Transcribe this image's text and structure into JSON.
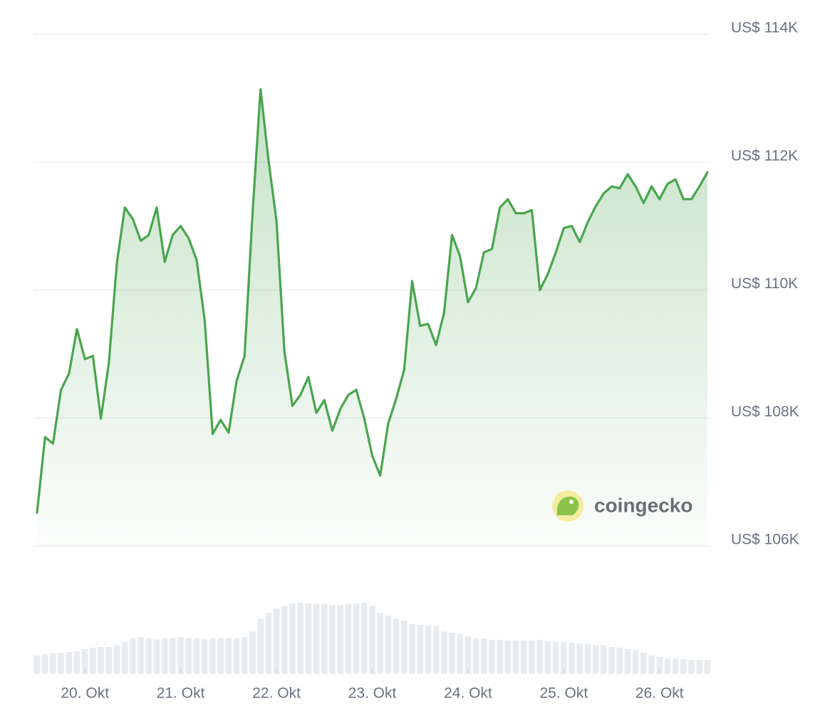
{
  "chart_data": {
    "type": "line",
    "watermark": "coingecko",
    "categories": [
      null,
      null,
      null,
      null,
      null,
      null,
      "20. Okt",
      null,
      null,
      null,
      null,
      null,
      null,
      null,
      null,
      null,
      null,
      null,
      "21. Okt",
      null,
      null,
      null,
      null,
      null,
      null,
      null,
      null,
      null,
      null,
      null,
      "22. Okt",
      null,
      null,
      null,
      null,
      null,
      null,
      null,
      null,
      null,
      null,
      null,
      "23. Okt",
      null,
      null,
      null,
      null,
      null,
      null,
      null,
      null,
      null,
      null,
      null,
      "24. Okt",
      null,
      null,
      null,
      null,
      null,
      null,
      null,
      null,
      null,
      null,
      null,
      "25. Okt",
      null,
      null,
      null,
      null,
      null,
      null,
      null,
      null,
      null,
      null,
      null,
      "26. Okt",
      null,
      null,
      null,
      null,
      null,
      null
    ],
    "values": [
      106520,
      107700,
      107600,
      108440,
      108690,
      109390,
      108920,
      108970,
      107990,
      108860,
      110420,
      111290,
      111110,
      110770,
      110860,
      111290,
      110440,
      110860,
      111000,
      110810,
      110470,
      109530,
      107750,
      107970,
      107770,
      108580,
      108970,
      111200,
      113140,
      112030,
      111080,
      109030,
      108190,
      108360,
      108640,
      108080,
      108280,
      107800,
      108140,
      108360,
      108440,
      107990,
      107410,
      107100,
      107910,
      108300,
      108750,
      110140,
      109440,
      109470,
      109140,
      109640,
      110860,
      110530,
      109810,
      110030,
      110590,
      110640,
      111290,
      111420,
      111200,
      111200,
      111250,
      110000,
      110250,
      110590,
      110970,
      111000,
      110750,
      111060,
      111310,
      111510,
      111620,
      111590,
      111810,
      111620,
      111360,
      111620,
      111420,
      111660,
      111730,
      111420,
      111420,
      111620,
      111840
    ],
    "color": "#4aa54f",
    "ylim": [
      106000,
      114000
    ],
    "yticks": [
      {
        "value": 106000,
        "label": "US$ 106K"
      },
      {
        "value": 108000,
        "label": "US$ 108K"
      },
      {
        "value": 110000,
        "label": "US$ 110K"
      },
      {
        "value": 112000,
        "label": "US$ 112K"
      },
      {
        "value": 114000,
        "label": "US$ 114K"
      }
    ],
    "grid": true,
    "volume": {
      "color": "#e9ecef",
      "ylim": [
        0,
        120
      ],
      "values": [
        26,
        28,
        29,
        30,
        31,
        32,
        35,
        37,
        38,
        38,
        40,
        45,
        50,
        52,
        50,
        49,
        50,
        51,
        52,
        51,
        50,
        49,
        50,
        51,
        51,
        50,
        52,
        60,
        78,
        86,
        92,
        96,
        99,
        100,
        99,
        98,
        98,
        97,
        97,
        98,
        99,
        100,
        96,
        86,
        82,
        78,
        75,
        70,
        69,
        68,
        68,
        60,
        58,
        56,
        53,
        50,
        50,
        48,
        48,
        47,
        47,
        47,
        47,
        48,
        46,
        45,
        45,
        44,
        43,
        42,
        40,
        40,
        38,
        37,
        35,
        34,
        30,
        26,
        24,
        22,
        22,
        21,
        20,
        20,
        20
      ]
    }
  }
}
